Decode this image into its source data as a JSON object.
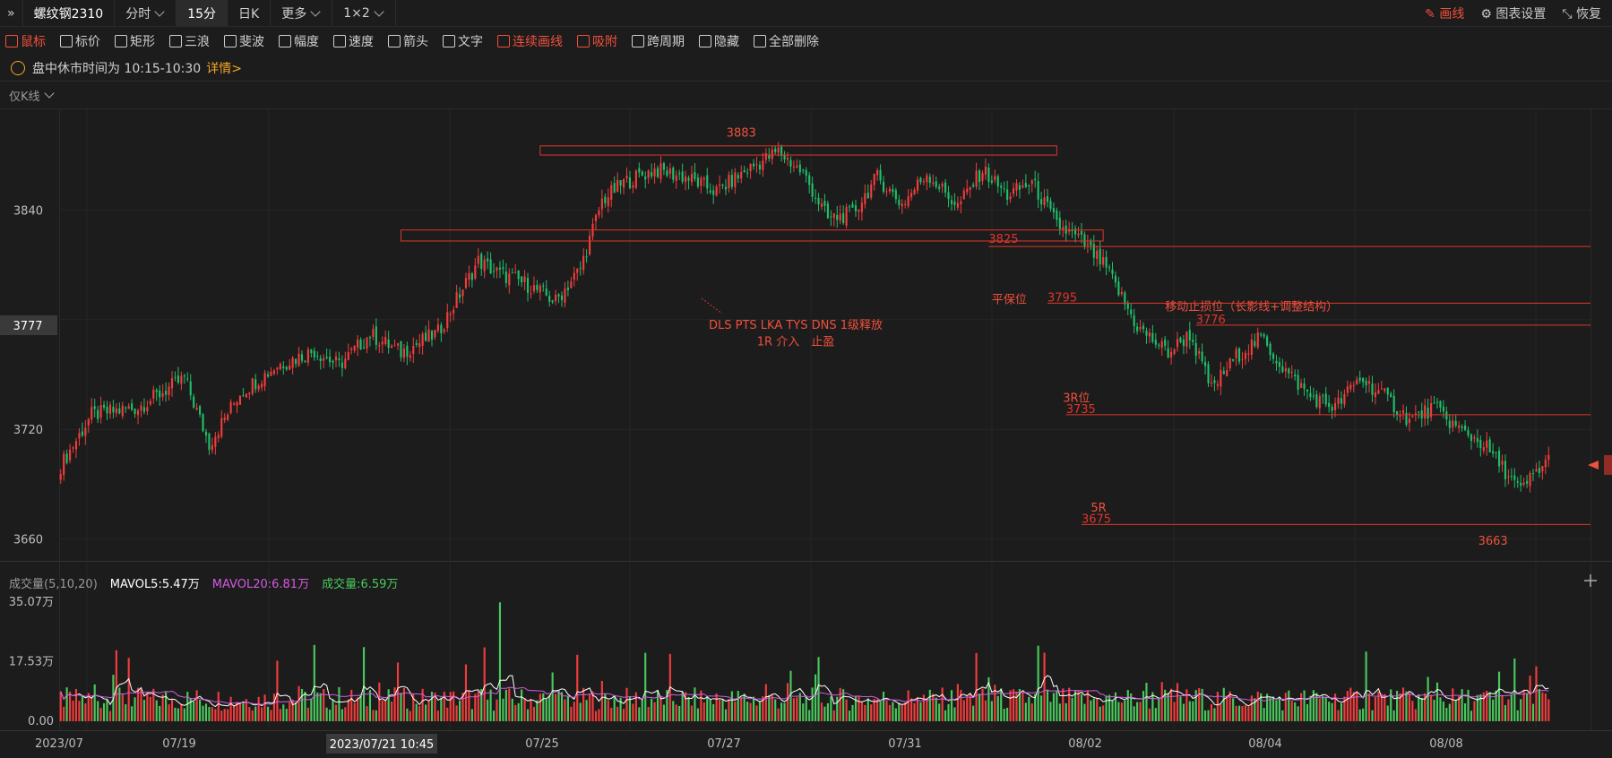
{
  "header": {
    "symbol": "螺纹钢2310",
    "tabs": [
      {
        "label": "分时",
        "active": false
      },
      {
        "label": "15分",
        "active": true
      },
      {
        "label": "日K",
        "active": false
      },
      {
        "label": "更多",
        "active": false
      },
      {
        "label": "1×2",
        "active": false
      }
    ],
    "right": {
      "draw": "画线",
      "settings": "图表设置",
      "restore": "恢复"
    }
  },
  "toolbar": {
    "items": [
      {
        "label": "鼠标",
        "icon": "cursor-icon",
        "highlight": true
      },
      {
        "label": "标价",
        "icon": "price-tag-icon"
      },
      {
        "label": "矩形",
        "icon": "rectangle-icon"
      },
      {
        "label": "三浪",
        "icon": "wave-icon"
      },
      {
        "label": "斐波",
        "icon": "fibonacci-icon"
      },
      {
        "label": "幅度",
        "icon": "range-icon"
      },
      {
        "label": "速度",
        "icon": "speed-icon"
      },
      {
        "label": "箭头",
        "icon": "arrow-icon"
      },
      {
        "label": "文字",
        "icon": "text-icon"
      },
      {
        "label": "连续画线",
        "icon": "pen-icon",
        "highlight": true
      },
      {
        "label": "吸附",
        "icon": "magnet-icon",
        "highlight": true
      },
      {
        "label": "跨周期",
        "icon": "cycle-icon"
      },
      {
        "label": "隐藏",
        "icon": "eye-hide-icon"
      },
      {
        "label": "全部删除",
        "icon": "trash-icon"
      }
    ]
  },
  "notice": {
    "text": "盘中休市时间为 10:15-10:30",
    "link": "详情>"
  },
  "subheader": "仅K线",
  "volume_header": {
    "label": "成交量(5,10,20)",
    "mavol5": "MAVOL5:5.47万",
    "mavol20": "MAVOL20:6.81万",
    "vol": "成交量:6.59万"
  },
  "price_axis": {
    "ticks": [
      "3840",
      "3720",
      "3660"
    ],
    "current": "3777"
  },
  "volume_axis": {
    "ticks": [
      "35.07万",
      "17.53万",
      "0.00"
    ]
  },
  "date_axis": {
    "labels": [
      "2023/07",
      "07/19",
      "07/25",
      "07/27",
      "07/31",
      "08/02",
      "08/04",
      "08/08"
    ],
    "cursor": "2023/07/21 10:45"
  },
  "annotations": {
    "high": "3883",
    "low": "3663",
    "level_3825": "3825",
    "breakeven_label": "平保位",
    "breakeven_value": "3795",
    "trailing_label": "移动止损位（长影线+调整结构）",
    "trailing_value": "3776",
    "r3_label": "3R位",
    "r3_value": "3735",
    "r5_label": "5R",
    "r5_value": "3675",
    "note1": "DLS PTS LKA TYS DNS 1级释放",
    "note2": "1R 介入　止盈"
  },
  "colors": {
    "up": "#f23c3c",
    "down": "#1fbf6a",
    "accent": "#f0503c",
    "ma5": "#ffffff",
    "ma20": "#d25be0",
    "vol": "#49c95c"
  },
  "chart_data": {
    "type": "candlestick",
    "anchors": [
      [
        0,
        3700
      ],
      [
        10,
        3728
      ],
      [
        25,
        3732
      ],
      [
        40,
        3748
      ],
      [
        48,
        3712
      ],
      [
        58,
        3740
      ],
      [
        70,
        3755
      ],
      [
        82,
        3763
      ],
      [
        90,
        3755
      ],
      [
        100,
        3772
      ],
      [
        110,
        3762
      ],
      [
        122,
        3773
      ],
      [
        135,
        3812
      ],
      [
        142,
        3805
      ],
      [
        150,
        3800
      ],
      [
        160,
        3790
      ],
      [
        168,
        3808
      ],
      [
        175,
        3845
      ],
      [
        182,
        3855
      ],
      [
        192,
        3862
      ],
      [
        202,
        3858
      ],
      [
        212,
        3850
      ],
      [
        222,
        3862
      ],
      [
        232,
        3872
      ],
      [
        240,
        3860
      ],
      [
        248,
        3835
      ],
      [
        256,
        3838
      ],
      [
        264,
        3858
      ],
      [
        272,
        3843
      ],
      [
        280,
        3860
      ],
      [
        290,
        3842
      ],
      [
        298,
        3862
      ],
      [
        306,
        3848
      ],
      [
        314,
        3855
      ],
      [
        322,
        3832
      ],
      [
        330,
        3823
      ],
      [
        338,
        3808
      ],
      [
        348,
        3776
      ],
      [
        358,
        3762
      ],
      [
        365,
        3772
      ],
      [
        372,
        3742
      ],
      [
        380,
        3760
      ],
      [
        388,
        3770
      ],
      [
        396,
        3752
      ],
      [
        404,
        3738
      ],
      [
        412,
        3732
      ],
      [
        420,
        3748
      ],
      [
        428,
        3738
      ],
      [
        436,
        3725
      ],
      [
        444,
        3732
      ],
      [
        452,
        3720
      ],
      [
        460,
        3712
      ],
      [
        468,
        3695
      ],
      [
        472,
        3686
      ],
      [
        476,
        3695
      ],
      [
        482,
        3705
      ]
    ],
    "total_bars": 482,
    "ylim": [
      3652,
      3895
    ]
  }
}
